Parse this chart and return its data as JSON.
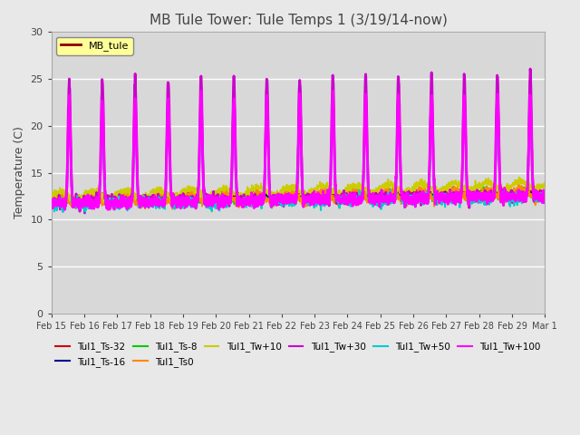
{
  "title": "MB Tule Tower: Tule Temps 1 (3/19/14-now)",
  "ylabel": "Temperature (C)",
  "ylim": [
    0,
    30
  ],
  "yticks": [
    0,
    5,
    10,
    15,
    20,
    25,
    30
  ],
  "legend_label": "MB_tule",
  "tick_labels": [
    "Feb 15",
    "Feb 16",
    "Feb 17",
    "Feb 18",
    "Feb 19",
    "Feb 20",
    "Feb 21",
    "Feb 22",
    "Feb 23",
    "Feb 24",
    "Feb 25",
    "Feb 26",
    "Feb 27",
    "Feb 28",
    "Feb 29",
    "Mar 1"
  ],
  "series": {
    "Tul1_Ts-32": {
      "color": "#cc0000",
      "lw": 1.2
    },
    "Tul1_Ts-16": {
      "color": "#00008b",
      "lw": 1.2
    },
    "Tul1_Ts-8": {
      "color": "#00cc00",
      "lw": 1.2
    },
    "Tul1_Ts0": {
      "color": "#ff8800",
      "lw": 1.2
    },
    "Tul1_Tw+10": {
      "color": "#cccc00",
      "lw": 1.2
    },
    "Tul1_Tw+30": {
      "color": "#cc00cc",
      "lw": 2.0
    },
    "Tul1_Tw+50": {
      "color": "#00cccc",
      "lw": 1.5
    },
    "Tul1_Tw+100": {
      "color": "#ff00ff",
      "lw": 2.0
    }
  },
  "background_color": "#e8e8e8",
  "plot_bg_color": "#d8d8d8",
  "grid_color": "#ffffff",
  "n_points": 2016,
  "days": 15,
  "seed": 42
}
